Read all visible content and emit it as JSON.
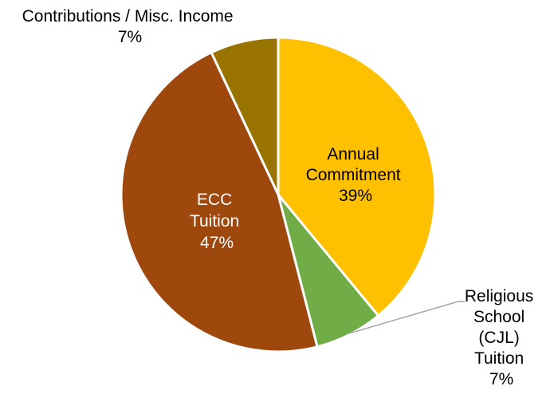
{
  "chart_data": {
    "type": "pie",
    "slices": [
      {
        "label_lines": [
          "Annual",
          "Commitment"
        ],
        "value": 39,
        "percent_label": "39%",
        "color": "#FFC000",
        "label_color": "#000000"
      },
      {
        "label_lines": [
          "Religious",
          "School",
          "(CJL)",
          "Tuition"
        ],
        "value": 7,
        "percent_label": "7%",
        "color": "#70AD47",
        "label_color": "#000000"
      },
      {
        "label_lines": [
          "ECC",
          "Tuition"
        ],
        "value": 47,
        "percent_label": "47%",
        "color": "#9E480E",
        "label_color": "#FFFFFF"
      },
      {
        "label_lines": [
          "Contributions / Misc. Income"
        ],
        "value": 7,
        "percent_label": "7%",
        "color": "#997300",
        "label_color": "#000000"
      }
    ],
    "start": "12 o'clock",
    "direction": "clockwise",
    "legend": "none"
  }
}
